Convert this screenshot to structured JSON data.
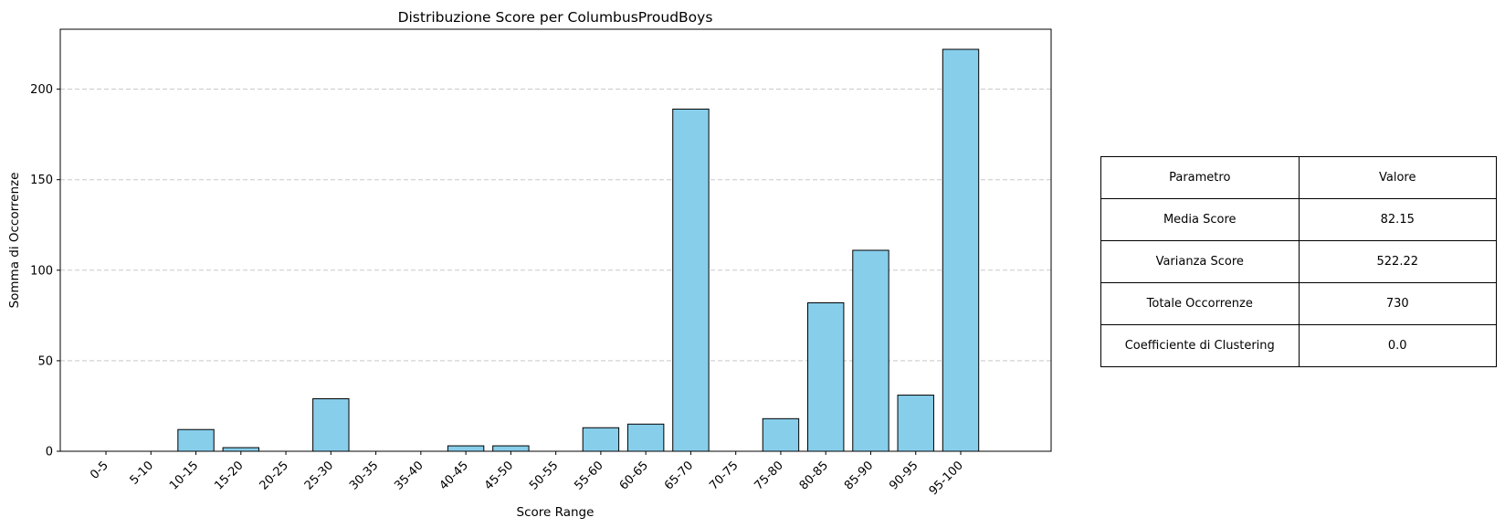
{
  "chart_data": {
    "type": "bar",
    "title": "Distribuzione Score per ColumbusProudBoys",
    "xlabel": "Score Range",
    "ylabel": "Somma di Occorrenze",
    "categories": [
      "0-5",
      "5-10",
      "10-15",
      "15-20",
      "20-25",
      "25-30",
      "30-35",
      "35-40",
      "40-45",
      "45-50",
      "50-55",
      "55-60",
      "60-65",
      "65-70",
      "70-75",
      "75-80",
      "80-85",
      "85-90",
      "90-95",
      "95-100"
    ],
    "values": [
      0,
      0,
      12,
      2,
      0,
      29,
      0,
      0,
      3,
      3,
      0,
      13,
      15,
      189,
      0,
      18,
      82,
      111,
      31,
      222
    ],
    "ylim": [
      0,
      233.1
    ],
    "yticks": [
      0,
      50,
      100,
      150,
      200
    ],
    "grid": "y, dashed",
    "bar_color": "#87ceeb",
    "bar_edge_color": "#000000",
    "grid_color": "#c8c8c8"
  },
  "stats_table": {
    "header": {
      "param": "Parametro",
      "value": "Valore"
    },
    "rows": [
      {
        "param": "Media Score",
        "value": "82.15"
      },
      {
        "param": "Varianza Score",
        "value": "522.22"
      },
      {
        "param": "Totale Occorrenze",
        "value": "730"
      },
      {
        "param": "Coefficiente di Clustering",
        "value": "0.0"
      }
    ]
  }
}
